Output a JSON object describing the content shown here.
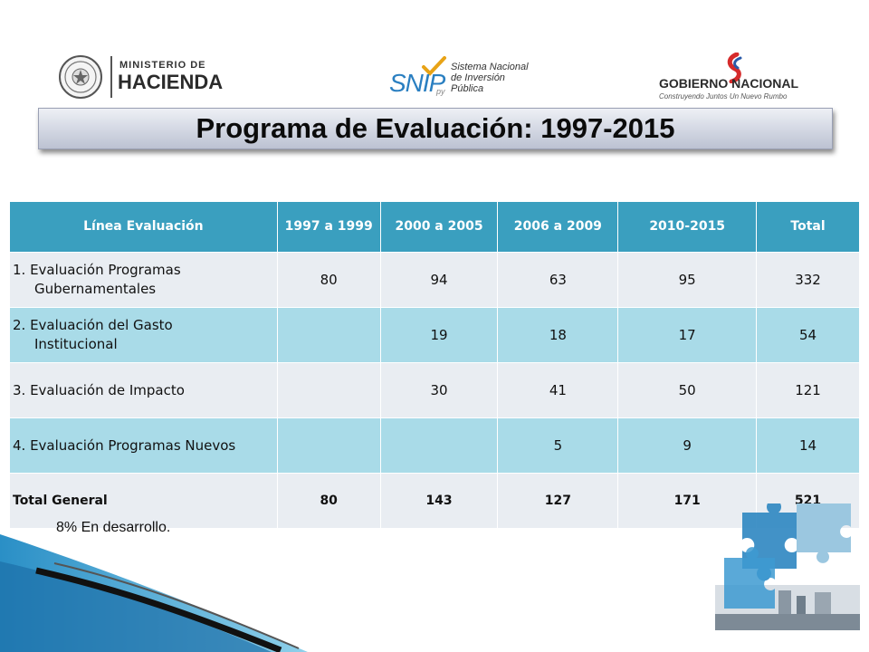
{
  "logos": {
    "hacienda": {
      "small": "MINISTERIO DE",
      "big": "HACIENDA"
    },
    "snip": {
      "word": "SNIP",
      "suffix": "py",
      "line1": "Sistema Nacional",
      "line2": "de Inversión",
      "line3": "Pública"
    },
    "gobierno": {
      "word": "GOBIERNO NACIONAL",
      "tagline": "Construyendo Juntos Un Nuevo Rumbo"
    }
  },
  "title": "Programa de Evaluación: 1997-2015",
  "table": {
    "headers": [
      "Línea Evaluación",
      "1997 a 1999",
      "2000 a 2005",
      "2006 a 2009",
      "2010-2015",
      "Total"
    ],
    "rows": [
      {
        "label_l1": "1. Evaluación Programas",
        "label_l2": "Gubernamentales",
        "values": [
          "80",
          "94",
          "63",
          "95",
          "332"
        ]
      },
      {
        "label_l1": "2. Evaluación del Gasto",
        "label_l2": "Institucional",
        "values": [
          "",
          "19",
          "18",
          "17",
          "54"
        ]
      },
      {
        "label_l1": "3. Evaluación de Impacto",
        "values": [
          "",
          "30",
          "41",
          "50",
          "121"
        ]
      },
      {
        "label_l1": "4. Evaluación Programas Nuevos",
        "values": [
          "",
          "",
          "5",
          "9",
          "14"
        ]
      }
    ],
    "total": {
      "label": "Total General",
      "values": [
        "80",
        "143",
        "127",
        "171",
        "521"
      ]
    }
  },
  "note": "8% En desarrollo.",
  "colors": {
    "header": "#3a9fbf",
    "row_light": "#e9edf2",
    "row_blue": "#a9dbe8"
  },
  "icons": [
    "paraguay-seal-icon",
    "snip-check-icon",
    "gobierno-flag-icon",
    "puzzle-decoration-icon"
  ]
}
